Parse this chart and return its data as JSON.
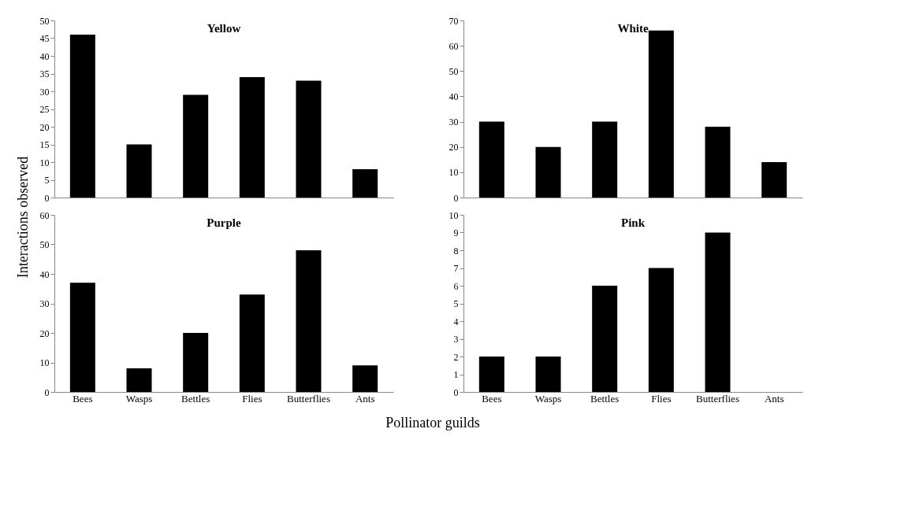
{
  "chart_data": [
    {
      "type": "bar",
      "title": "Yellow",
      "ylabel": "Interactions observed",
      "categories": [
        null,
        null,
        null,
        null,
        null,
        null
      ],
      "values": [
        46,
        15,
        29,
        34,
        33,
        8
      ],
      "color": "#000000",
      "ylim": [
        0,
        50
      ],
      "yticks": [
        0,
        5,
        10,
        15,
        20,
        25,
        30,
        35,
        40,
        45,
        50
      ],
      "tick_labels": "y"
    },
    {
      "type": "bar",
      "title": "White",
      "categories": [
        null,
        null,
        null,
        null,
        null,
        null
      ],
      "values": [
        30,
        20,
        30,
        66,
        28,
        14
      ],
      "color": "#000000",
      "ylim": [
        0,
        70
      ],
      "yticks": [
        0,
        10,
        20,
        30,
        40,
        50,
        60,
        70
      ],
      "tick_labels": "y"
    },
    {
      "type": "bar",
      "title": "Purple",
      "xlabel": "Pollinator guilds",
      "categories": [
        "Bees",
        "Wasps",
        "Bettles",
        "Flies",
        "Butterflies",
        "Ants"
      ],
      "values": [
        37,
        8,
        20,
        33,
        48,
        9
      ],
      "color": "#000000",
      "ylim": [
        0,
        60
      ],
      "yticks": [
        0,
        10,
        20,
        30,
        40,
        50,
        60
      ]
    },
    {
      "type": "bar",
      "title": "Pink",
      "categories": [
        "Bees",
        "Wasps",
        "Bettles",
        "Flies",
        "Butterflies",
        "Ants"
      ],
      "values": [
        2,
        2,
        6,
        7,
        9,
        0
      ],
      "color": "#000000",
      "ylim": [
        0,
        10
      ],
      "yticks": [
        0,
        1,
        2,
        3,
        4,
        5,
        6,
        7,
        8,
        9,
        10
      ]
    }
  ]
}
